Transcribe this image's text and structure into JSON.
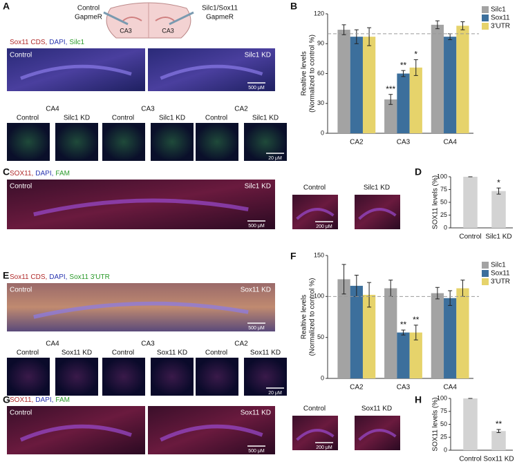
{
  "figure": {
    "panel_labels": [
      "A",
      "B",
      "C",
      "D",
      "E",
      "F",
      "G",
      "H"
    ],
    "a": {
      "injection_left": [
        "Control",
        "GapmeR"
      ],
      "injection_right": [
        "Silc1/Sox11",
        "GapmeR"
      ],
      "sites": [
        "CA3",
        "CA3"
      ],
      "stain": [
        "Sox11 CDS,",
        "DAPI,",
        "Silc1"
      ],
      "left": "Control",
      "right": "Silc1 KD",
      "scale": "500 μM",
      "regions": [
        "CA4",
        "CA3",
        "CA2"
      ],
      "pair": [
        "Control",
        "Silc1 KD"
      ],
      "small_scale": "20 μM"
    },
    "c": {
      "stain": [
        "SOX11,",
        "DAPI,",
        "FAM"
      ],
      "left": "Control",
      "right": "Silc1 KD",
      "scale": "500 μM",
      "inset": [
        "Control",
        "Silc1 KD"
      ],
      "inset_scale": "200 μM"
    },
    "e": {
      "stain": [
        "Sox11 CDS,",
        "DAPI,",
        "Sox11 3'UTR"
      ],
      "left": "Control",
      "right": "Sox11 KD",
      "scale": "500 μM",
      "regions": [
        "CA4",
        "CA3",
        "CA2"
      ],
      "pair": [
        "Control",
        "Sox11 KD"
      ],
      "small_scale": "20 μM"
    },
    "g": {
      "stain": [
        "SOX11,",
        "DAPI,",
        "FAM"
      ],
      "left": "Control",
      "right": "Sox11 KD",
      "scale": "500 μM",
      "inset": [
        "Control",
        "Sox11 KD"
      ],
      "inset_scale": "200 μM"
    }
  },
  "chart_data": [
    {
      "type": "bar",
      "ylabel": [
        "Realtive levels",
        "(Normalized to control %)"
      ],
      "categories": [
        "CA2",
        "CA3",
        "CA4"
      ],
      "series": [
        {
          "name": "Silc1",
          "color": "#a3a3a3",
          "values": [
            104,
            34,
            109
          ],
          "errors": [
            5,
            5,
            4
          ],
          "significance": [
            null,
            "***",
            null
          ]
        },
        {
          "name": "Sox11",
          "color": "#3c6f9c",
          "values": [
            97,
            60,
            97
          ],
          "errors": [
            7,
            3,
            3
          ],
          "significance": [
            null,
            "**",
            null
          ]
        },
        {
          "name": "3'UTR",
          "color": "#e6d36b",
          "values": [
            97,
            66,
            108
          ],
          "errors": [
            9,
            8,
            4
          ],
          "significance": [
            null,
            "*",
            null
          ]
        }
      ],
      "ylim": [
        0,
        120
      ],
      "yticks": [
        0,
        30,
        60,
        90,
        120
      ],
      "reference_line": 100
    },
    {
      "type": "bar",
      "ylabel": [
        "SOX11 levels (%)"
      ],
      "categories": [
        "Control",
        "Silc1 KD"
      ],
      "values": [
        100,
        72
      ],
      "errors": [
        0,
        6
      ],
      "significance": [
        null,
        "*"
      ],
      "color": "#d3d3d3",
      "ylim": [
        0,
        100
      ],
      "yticks": [
        0,
        25,
        50,
        75,
        100
      ]
    },
    {
      "type": "bar",
      "ylabel": [
        "Realtive levels",
        "(Normalized to control %)"
      ],
      "categories": [
        "CA2",
        "CA3",
        "CA4"
      ],
      "series": [
        {
          "name": "Silc1",
          "color": "#a3a3a3",
          "values": [
            121,
            110,
            104
          ],
          "errors": [
            18,
            10,
            7
          ],
          "significance": [
            null,
            null,
            null
          ]
        },
        {
          "name": "Sox11",
          "color": "#3c6f9c",
          "values": [
            113,
            56,
            98
          ],
          "errors": [
            13,
            3,
            9
          ],
          "significance": [
            null,
            "**",
            null
          ]
        },
        {
          "name": "3'UTR",
          "color": "#e6d36b",
          "values": [
            102,
            56,
            110
          ],
          "errors": [
            15,
            9,
            10
          ],
          "significance": [
            null,
            "**",
            null
          ]
        }
      ],
      "ylim": [
        0,
        150
      ],
      "yticks": [
        0,
        50,
        100,
        150
      ],
      "reference_line": 100
    },
    {
      "type": "bar",
      "ylabel": [
        "SOX11 levels (%)"
      ],
      "categories": [
        "Control",
        "Sox11 KD"
      ],
      "values": [
        100,
        37
      ],
      "errors": [
        0,
        3
      ],
      "significance": [
        null,
        "**"
      ],
      "color": "#d3d3d3",
      "ylim": [
        0,
        100
      ],
      "yticks": [
        0,
        25,
        50,
        75,
        100
      ]
    }
  ]
}
